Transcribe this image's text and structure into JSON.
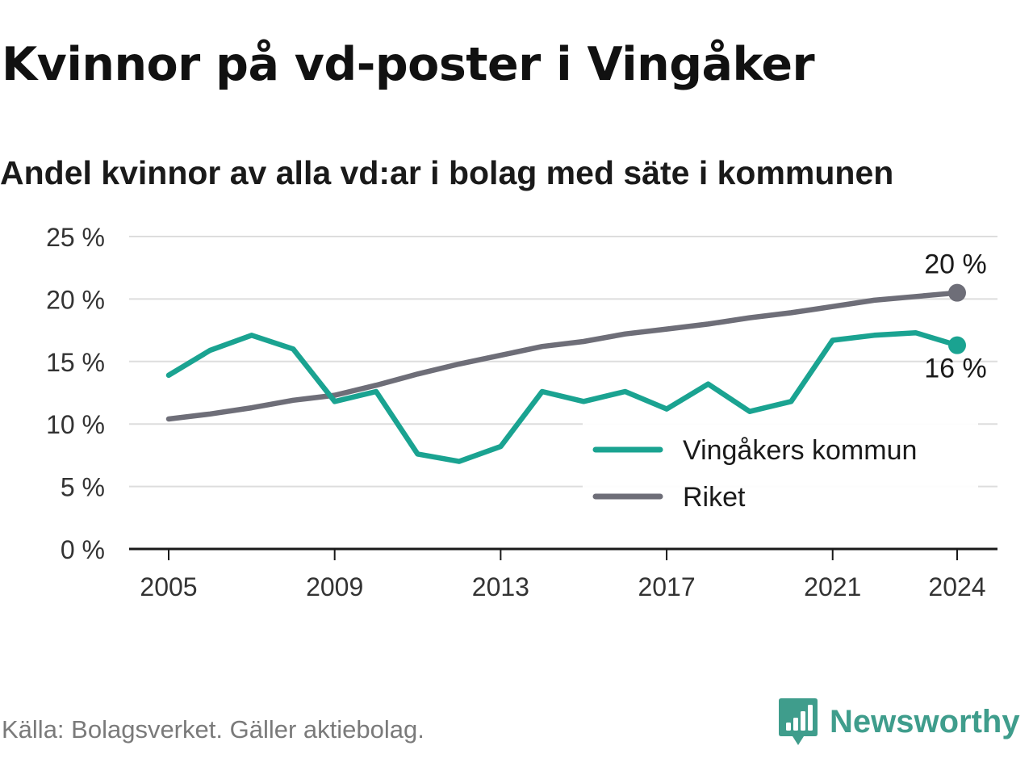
{
  "header": {
    "title": "Kvinnor på vd-poster i Vingåker",
    "subtitle": "Andel kvinnor av alla vd:ar i bolag med säte i kommunen"
  },
  "footer": {
    "source": "Källa: Bolagsverket. Gäller aktiebolag.",
    "brand": "Newsworthy"
  },
  "colors": {
    "vingaker": "#1aa391",
    "riket": "#6e6e78",
    "grid": "#dddddd",
    "axis": "#1a1a1a",
    "brand": "#3f9d8c"
  },
  "chart_data": {
    "type": "line",
    "ylim": [
      0,
      25
    ],
    "yticks": [
      0,
      5,
      10,
      15,
      20,
      25
    ],
    "ytick_labels": [
      "0 %",
      "5 %",
      "10 %",
      "15 %",
      "20 %",
      "25 %"
    ],
    "xlim": [
      2005,
      2024
    ],
    "xticks": [
      2005,
      2009,
      2013,
      2017,
      2021,
      2024
    ],
    "xtick_labels": [
      "2005",
      "2009",
      "2013",
      "2017",
      "2021",
      "2024"
    ],
    "grid": true,
    "legend_position": "bottom-right",
    "x": [
      2005,
      2006,
      2007,
      2008,
      2009,
      2010,
      2011,
      2012,
      2013,
      2014,
      2015,
      2016,
      2017,
      2018,
      2019,
      2020,
      2021,
      2022,
      2023,
      2024
    ],
    "series": [
      {
        "name": "Vingåkers kommun",
        "color": "#1aa391",
        "values": [
          13.9,
          15.9,
          17.1,
          16.0,
          11.8,
          12.6,
          7.6,
          7.0,
          8.2,
          12.6,
          11.8,
          12.6,
          11.2,
          13.2,
          11.0,
          11.8,
          16.7,
          17.1,
          17.3,
          16.3
        ],
        "end_label": "16 %"
      },
      {
        "name": "Riket",
        "color": "#6e6e78",
        "values": [
          10.4,
          10.8,
          11.3,
          11.9,
          12.3,
          13.1,
          14.0,
          14.8,
          15.5,
          16.2,
          16.6,
          17.2,
          17.6,
          18.0,
          18.5,
          18.9,
          19.4,
          19.9,
          20.2,
          20.5
        ],
        "end_label": "20 %"
      }
    ]
  }
}
